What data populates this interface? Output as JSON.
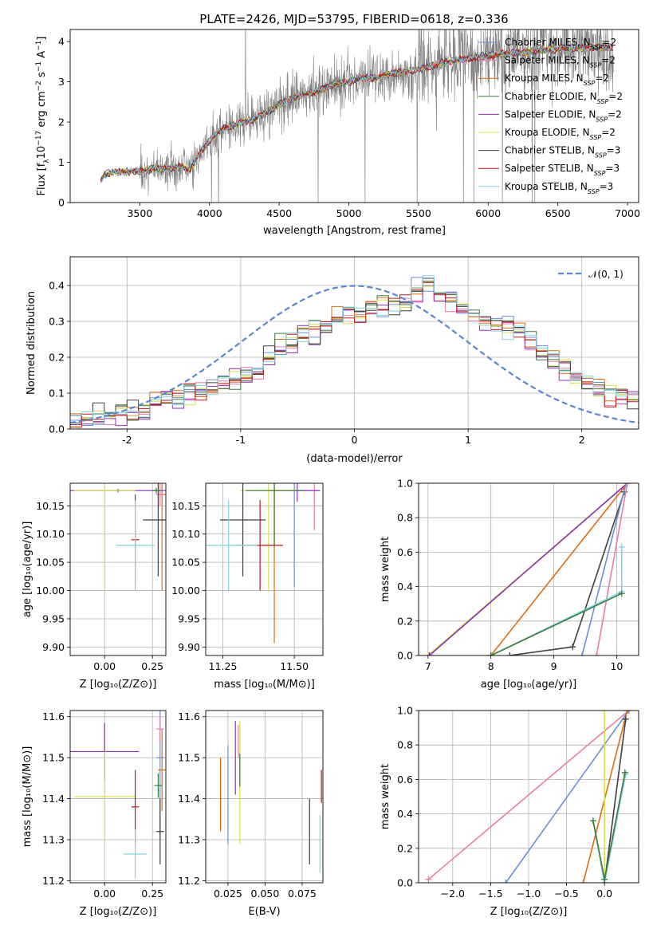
{
  "title": "PLATE=2426, MJD=53795, FIBERID=0618, z=0.336",
  "chart_data": [
    {
      "id": "spectrum",
      "type": "line",
      "title": "PLATE=2426, MJD=53795, FIBERID=0618, z=0.336",
      "xlabel": "wavelength [Angstrom, rest frame]",
      "ylabel": "Flux [f_λ 10^-17 erg cm^-2 s^-1 A^-1]",
      "xlim": [
        3000,
        7080
      ],
      "ylim": [
        0,
        4.3
      ],
      "xticks": [
        3500,
        4000,
        4500,
        5000,
        5500,
        6000,
        6500,
        7000
      ],
      "yticks": [
        0,
        1,
        2,
        3,
        4
      ],
      "data_range": [
        3220,
        6900
      ],
      "model_trend": [
        [
          3220,
          0.55
        ],
        [
          3240,
          0.68
        ],
        [
          3300,
          0.75
        ],
        [
          3400,
          0.77
        ],
        [
          3500,
          0.78
        ],
        [
          3600,
          0.85
        ],
        [
          3700,
          0.85
        ],
        [
          3800,
          0.9
        ],
        [
          3850,
          0.8
        ],
        [
          3900,
          1.05
        ],
        [
          3950,
          1.3
        ],
        [
          4000,
          1.55
        ],
        [
          4100,
          1.85
        ],
        [
          4200,
          1.95
        ],
        [
          4300,
          2.05
        ],
        [
          4400,
          2.2
        ],
        [
          4500,
          2.45
        ],
        [
          4600,
          2.6
        ],
        [
          4700,
          2.7
        ],
        [
          4800,
          2.8
        ],
        [
          4900,
          2.95
        ],
        [
          5000,
          3.0
        ],
        [
          5100,
          3.1
        ],
        [
          5200,
          3.1
        ],
        [
          5300,
          3.2
        ],
        [
          5400,
          3.25
        ],
        [
          5500,
          3.3
        ],
        [
          5600,
          3.4
        ],
        [
          5700,
          3.5
        ],
        [
          5800,
          3.55
        ],
        [
          5900,
          3.6
        ],
        [
          6000,
          3.65
        ],
        [
          6100,
          3.7
        ],
        [
          6200,
          3.72
        ],
        [
          6300,
          3.75
        ],
        [
          6400,
          3.8
        ],
        [
          6500,
          3.8
        ],
        [
          6600,
          3.82
        ],
        [
          6700,
          3.85
        ],
        [
          6800,
          3.85
        ],
        [
          6900,
          3.85
        ]
      ],
      "legend_location": "upper right",
      "legend": [
        {
          "label": "Chabrier MILES, N_SSP=2",
          "color": "#6b8fd6"
        },
        {
          "label": "Salpeter MILES, N_SSP=2",
          "color": "#e87ca8"
        },
        {
          "label": "Kroupa MILES, N_SSP=2",
          "color": "#e06c10"
        },
        {
          "label": "Chabrier ELODIE, N_SSP=2",
          "color": "#3b7a3b"
        },
        {
          "label": "Salpeter ELODIE, N_SSP=2",
          "color": "#8e2fb8"
        },
        {
          "label": "Kroupa ELODIE, N_SSP=2",
          "color": "#d6e04a"
        },
        {
          "label": "Chabrier STELIB, N_SSP=3",
          "color": "#404040"
        },
        {
          "label": "Salpeter STELIB, N_SSP=3",
          "color": "#c01515"
        },
        {
          "label": "Kroupa STELIB, N_SSP=3",
          "color": "#7fd3e0"
        }
      ]
    },
    {
      "id": "residuals",
      "type": "histogram",
      "xlabel": "(data-model)/error",
      "ylabel": "Normed distribution",
      "xlim": [
        -2.5,
        2.5
      ],
      "ylim": [
        0,
        0.48
      ],
      "xticks": [
        -2,
        -1,
        0,
        1,
        2
      ],
      "yticks": [
        0.0,
        0.1,
        0.2,
        0.3,
        0.4
      ],
      "bin_width": 0.1,
      "bin_start": -2.5,
      "base_values": [
        0.02,
        0.025,
        0.03,
        0.04,
        0.045,
        0.05,
        0.06,
        0.07,
        0.085,
        0.095,
        0.1,
        0.11,
        0.12,
        0.13,
        0.14,
        0.15,
        0.17,
        0.2,
        0.22,
        0.24,
        0.26,
        0.27,
        0.29,
        0.31,
        0.32,
        0.32,
        0.33,
        0.34,
        0.34,
        0.35,
        0.38,
        0.4,
        0.38,
        0.36,
        0.34,
        0.32,
        0.3,
        0.29,
        0.28,
        0.27,
        0.25,
        0.22,
        0.2,
        0.17,
        0.15,
        0.13,
        0.11,
        0.1,
        0.09,
        0.08
      ],
      "legend": [
        {
          "label": "𝒩(0, 1)",
          "color": "#5a86d0",
          "style": "dashed"
        }
      ]
    },
    {
      "id": "age-vs-Z",
      "type": "errorbar",
      "xlabel": "Z [log10(Z/Z⊙)]",
      "ylabel": "age [log10(age/yr)]",
      "xlim": [
        -0.18,
        0.32
      ],
      "ylim": [
        9.885,
        10.19
      ],
      "xticks": [
        0.0,
        0.25
      ],
      "xticklabels": [
        "0.00",
        "0.25"
      ],
      "yticks": [
        9.9,
        9.95,
        10.0,
        10.05,
        10.1,
        10.15
      ],
      "yticklabels": [
        "9.90",
        "9.95",
        "10.00",
        "10.05",
        "10.10",
        "10.15"
      ],
      "points": [
        {
          "x": 0.29,
          "y": 10.17,
          "xerr": 0.02,
          "yerr": 0.005,
          "color": "#6b8fd6"
        },
        {
          "x": 0.3,
          "y": 10.17,
          "xerr": 0.02,
          "yerr": 0.17,
          "color": "#e06c10"
        },
        {
          "x": 0.29,
          "y": 10.17,
          "xerr": 0.02,
          "yerr": 0.02,
          "color": "#e87ca8"
        },
        {
          "x": 0.07,
          "y": 10.177,
          "xerr": 0.25,
          "yerr": 0.003,
          "color": "#8e2fb8"
        },
        {
          "x": 0.0,
          "y": 10.177,
          "xerr": 0.16,
          "yerr": 0.18,
          "color": "#d6e04a"
        },
        {
          "x": 0.28,
          "y": 10.125,
          "xerr": 0.08,
          "yerr": 0.1,
          "color": "#404040"
        },
        {
          "x": 0.16,
          "y": 10.09,
          "xerr": 0.02,
          "yerr": 0.08,
          "color": "#c01515"
        },
        {
          "x": 0.16,
          "y": 10.08,
          "xerr": 0.1,
          "yerr": 0.08,
          "color": "#7fd3e0"
        },
        {
          "x": 0.27,
          "y": 10.177,
          "xerr": 0.02,
          "yerr": 0.005,
          "color": "#3b7a3b"
        }
      ]
    },
    {
      "id": "age-vs-mass",
      "type": "errorbar",
      "xlabel": "mass [log10(M/M⊙)]",
      "ylabel": "",
      "xlim": [
        11.19,
        11.6
      ],
      "ylim": [
        9.885,
        10.19
      ],
      "xticks": [
        11.25,
        11.5
      ],
      "xticklabels": [
        "11.25",
        "11.50"
      ],
      "yticks": [
        9.9,
        9.95,
        10.0,
        10.05,
        10.1,
        10.15
      ],
      "yticklabels": [
        "9.90",
        "9.95",
        "10.00",
        "10.05",
        "10.10",
        "10.15"
      ],
      "points": [
        {
          "x": 11.5,
          "y": 10.177,
          "xerr": 0.05,
          "yerr": 0.17,
          "color": "#6b8fd6"
        },
        {
          "x": 11.43,
          "y": 10.177,
          "xerr": 0.02,
          "yerr": 0.27,
          "color": "#e06c10"
        },
        {
          "x": 11.57,
          "y": 10.177,
          "xerr": 0.02,
          "yerr": 0.07,
          "color": "#e87ca8"
        },
        {
          "x": 11.51,
          "y": 10.177,
          "xerr": 0.08,
          "yerr": 0.02,
          "color": "#8e2fb8"
        },
        {
          "x": 11.41,
          "y": 10.177,
          "xerr": 0.1,
          "yerr": 0.18,
          "color": "#d6e04a"
        },
        {
          "x": 11.32,
          "y": 10.125,
          "xerr": 0.08,
          "yerr": 0.1,
          "color": "#404040"
        },
        {
          "x": 11.38,
          "y": 10.08,
          "xerr": 0.08,
          "yerr": 0.08,
          "color": "#c01515"
        },
        {
          "x": 11.27,
          "y": 10.08,
          "xerr": 0.1,
          "yerr": 0.08,
          "color": "#7fd3e0"
        },
        {
          "x": 11.43,
          "y": 10.177,
          "xerr": 0.1,
          "yerr": 0.1,
          "color": "#3b7a3b"
        }
      ]
    },
    {
      "id": "weight-vs-age",
      "type": "line",
      "xlabel": "age [log10(age/yr)]",
      "ylabel": "mass weight",
      "xlim": [
        6.85,
        10.35
      ],
      "ylim": [
        0.0,
        1.0
      ],
      "xticks": [
        7,
        8,
        9,
        10
      ],
      "yticks": [
        0.0,
        0.2,
        0.4,
        0.6,
        0.8,
        1.0
      ],
      "series": [
        {
          "color": "#d6e04a",
          "points": [
            [
              7.0,
              0.0
            ],
            [
              10.17,
              1.0
            ]
          ]
        },
        {
          "color": "#8e2fb8",
          "points": [
            [
              7.02,
              0.0
            ],
            [
              10.17,
              1.0
            ]
          ]
        },
        {
          "color": "#e06c10",
          "points": [
            [
              8.0,
              0.0
            ],
            [
              10.17,
              1.0
            ]
          ]
        },
        {
          "color": "#404040",
          "points": [
            [
              8.3,
              0.0
            ],
            [
              9.3,
              0.05
            ],
            [
              10.12,
              0.95
            ]
          ]
        },
        {
          "color": "#6b8fd6",
          "points": [
            [
              9.45,
              0.0
            ],
            [
              10.15,
              1.0
            ]
          ]
        },
        {
          "color": "#e87ca8",
          "points": [
            [
              9.68,
              0.0
            ],
            [
              10.17,
              1.0
            ]
          ]
        },
        {
          "color": "#7fd3e0",
          "points": [
            [
              8.0,
              0.0
            ],
            [
              10.08,
              0.37
            ],
            [
              10.08,
              0.63
            ]
          ]
        },
        {
          "color": "#3b7a3b",
          "points": [
            [
              8.0,
              0.0
            ],
            [
              10.08,
              0.36
            ]
          ]
        }
      ]
    },
    {
      "id": "mass-vs-Z",
      "type": "errorbar",
      "xlabel": "Z [log10(Z/Z⊙)]",
      "ylabel": "mass [log10(M/M⊙)]",
      "xlim": [
        -0.18,
        0.32
      ],
      "ylim": [
        11.195,
        11.615
      ],
      "xticks": [
        0.0,
        0.25
      ],
      "xticklabels": [
        "0.00",
        "0.25"
      ],
      "yticks": [
        11.2,
        11.3,
        11.4,
        11.5,
        11.6
      ],
      "yticklabels": [
        "11.2",
        "11.3",
        "11.4",
        "11.5",
        "11.6"
      ],
      "points": [
        {
          "x": 0.29,
          "y": 11.5,
          "xerr": 0.02,
          "yerr": 0.2,
          "color": "#6b8fd6"
        },
        {
          "x": 0.3,
          "y": 11.47,
          "xerr": 0.02,
          "yerr": 0.1,
          "color": "#e06c10"
        },
        {
          "x": 0.29,
          "y": 11.57,
          "xerr": 0.02,
          "yerr": 0.03,
          "color": "#e87ca8"
        },
        {
          "x": 0.0,
          "y": 11.515,
          "xerr": 0.18,
          "yerr": 0.07,
          "color": "#8e2fb8"
        },
        {
          "x": 0.0,
          "y": 11.405,
          "xerr": 0.16,
          "yerr": 0.11,
          "color": "#d6e04a"
        },
        {
          "x": 0.29,
          "y": 11.32,
          "xerr": 0.02,
          "yerr": 0.08,
          "color": "#404040"
        },
        {
          "x": 0.16,
          "y": 11.38,
          "xerr": 0.02,
          "yerr": 0.09,
          "color": "#c01515"
        },
        {
          "x": 0.16,
          "y": 11.265,
          "xerr": 0.06,
          "yerr": 0.06,
          "color": "#7fd3e0"
        },
        {
          "x": 0.28,
          "y": 11.432,
          "xerr": 0.02,
          "yerr": 0.03,
          "color": "#3b7a3b"
        }
      ]
    },
    {
      "id": "mass-vs-EBV",
      "type": "errorbar",
      "xlabel": "E(B-V)",
      "ylabel": "",
      "xlim": [
        0.01,
        0.089
      ],
      "ylim": [
        11.195,
        11.615
      ],
      "xticks": [
        0.025,
        0.05,
        0.075
      ],
      "xticklabels": [
        "0.025",
        "0.050",
        "0.075"
      ],
      "yticks": [
        11.2,
        11.3,
        11.4,
        11.5,
        11.6
      ],
      "yticklabels": [
        "11.2",
        "11.3",
        "11.4",
        "11.5",
        "11.6"
      ],
      "points": [
        {
          "x": 0.025,
          "y": 11.41,
          "xerr": 0.0,
          "yerr": 0.12,
          "color": "#6b8fd6"
        },
        {
          "x": 0.02,
          "y": 11.41,
          "xerr": 0.0,
          "yerr": 0.09,
          "color": "#e06c10"
        },
        {
          "x": 0.032,
          "y": 11.54,
          "xerr": 0.0,
          "yerr": 0.04,
          "color": "#e87ca8"
        },
        {
          "x": 0.03,
          "y": 11.5,
          "xerr": 0.0,
          "yerr": 0.09,
          "color": "#8e2fb8"
        },
        {
          "x": 0.033,
          "y": 11.44,
          "xerr": 0.0,
          "yerr": 0.15,
          "color": "#d6e04a"
        },
        {
          "x": 0.08,
          "y": 11.32,
          "xerr": 0.0,
          "yerr": 0.08,
          "color": "#404040"
        },
        {
          "x": 0.088,
          "y": 11.43,
          "xerr": 0.0,
          "yerr": 0.04,
          "color": "#c01515"
        },
        {
          "x": 0.087,
          "y": 11.29,
          "xerr": 0.0,
          "yerr": 0.07,
          "color": "#7fd3e0"
        },
        {
          "x": 0.033,
          "y": 11.47,
          "xerr": 0.0,
          "yerr": 0.04,
          "color": "#3b7a3b"
        }
      ]
    },
    {
      "id": "weight-vs-Z",
      "type": "line",
      "xlabel": "Z [log10(Z/Z⊙)]",
      "ylabel": "mass weight",
      "xlim": [
        -2.45,
        0.45
      ],
      "ylim": [
        0.0,
        1.0
      ],
      "xticks": [
        -2.0,
        -1.5,
        -1.0,
        -0.5,
        0.0
      ],
      "xticklabels": [
        "−2.0",
        "−1.5",
        "−1.0",
        "−0.5",
        "0.0"
      ],
      "yticks": [
        0.0,
        0.2,
        0.4,
        0.6,
        0.8,
        1.0
      ],
      "series": [
        {
          "color": "#e87ca8",
          "points": [
            [
              -2.32,
              0.02
            ],
            [
              0.32,
              1.0
            ]
          ]
        },
        {
          "color": "#6b8fd6",
          "points": [
            [
              -1.3,
              0.0
            ],
            [
              0.32,
              1.0
            ]
          ]
        },
        {
          "color": "#e06c10",
          "points": [
            [
              -0.28,
              0.0
            ],
            [
              0.3,
              1.0
            ]
          ]
        },
        {
          "color": "#d6e04a",
          "points": [
            [
              0.0,
              0.0
            ],
            [
              0.0,
              1.0
            ]
          ]
        },
        {
          "color": "#404040",
          "points": [
            [
              0.0,
              0.0
            ],
            [
              0.28,
              0.95
            ]
          ]
        },
        {
          "color": "#7fd3e0",
          "points": [
            [
              -0.15,
              0.36
            ],
            [
              0.0,
              0.0
            ],
            [
              0.28,
              0.63
            ]
          ]
        },
        {
          "color": "#3b7a3b",
          "points": [
            [
              -0.15,
              0.36
            ],
            [
              0.0,
              0.02
            ],
            [
              0.27,
              0.64
            ]
          ]
        }
      ]
    }
  ]
}
